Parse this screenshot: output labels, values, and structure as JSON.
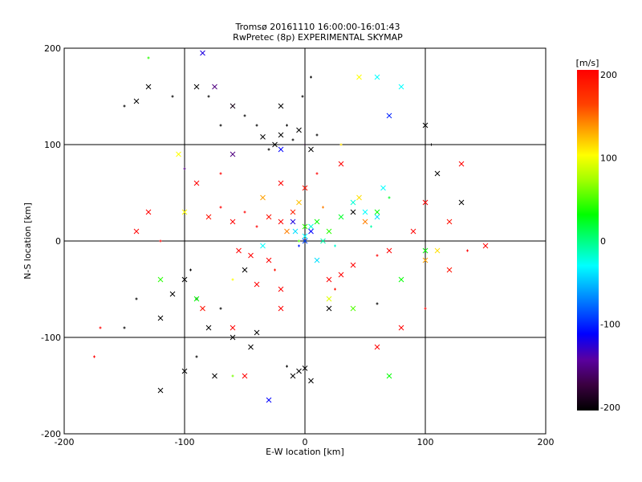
{
  "chart_data": {
    "type": "scatter",
    "title": "Tromsø 20161110 16:00:00-16:01:43",
    "subtitle": "RwPretec (8p) EXPERIMENTAL SKYMAP",
    "xlabel": "E-W location [km]",
    "ylabel": "N-S location [km]",
    "xlim": [
      -200,
      200
    ],
    "ylim": [
      -200,
      200
    ],
    "xticks": [
      "-200",
      "-100",
      "0",
      "100",
      "200"
    ],
    "yticks": [
      "-200",
      "-100",
      "0",
      "100",
      "200"
    ],
    "grid": true,
    "colorbar": {
      "label": "[m/s]",
      "range": [
        -200,
        200
      ],
      "ticks": [
        "200",
        "100",
        "0",
        "-100",
        "-200"
      ],
      "stops": [
        [
          -200,
          "#000000"
        ],
        [
          -170,
          "#3a0040"
        ],
        [
          -140,
          "#5a00a0"
        ],
        [
          -110,
          "#0000ff"
        ],
        [
          -60,
          "#00a0ff"
        ],
        [
          -30,
          "#00ffff"
        ],
        [
          0,
          "#00ff80"
        ],
        [
          30,
          "#00ff00"
        ],
        [
          70,
          "#a0ff00"
        ],
        [
          100,
          "#ffff00"
        ],
        [
          130,
          "#ffa000"
        ],
        [
          160,
          "#ff4000"
        ],
        [
          200,
          "#ff0000"
        ]
      ]
    },
    "points": [
      [
        -20,
        110,
        -200,
        "x"
      ],
      [
        -25,
        100,
        -200,
        "x"
      ],
      [
        -10,
        105,
        -200,
        "+"
      ],
      [
        -30,
        95,
        -200,
        "+"
      ],
      [
        -5,
        115,
        -200,
        "x"
      ],
      [
        -15,
        120,
        -200,
        "+"
      ],
      [
        0,
        100,
        -190,
        "+"
      ],
      [
        -35,
        108,
        -200,
        "x"
      ],
      [
        -40,
        120,
        -200,
        "+"
      ],
      [
        10,
        110,
        -200,
        "+"
      ],
      [
        5,
        95,
        -200,
        "x"
      ],
      [
        -50,
        130,
        -200,
        "+"
      ],
      [
        -60,
        140,
        -190,
        "x"
      ],
      [
        -70,
        120,
        -200,
        "+"
      ],
      [
        -80,
        150,
        -200,
        "+"
      ],
      [
        -90,
        160,
        -200,
        "x"
      ],
      [
        -110,
        150,
        -200,
        "+"
      ],
      [
        -130,
        160,
        -200,
        "x"
      ],
      [
        -140,
        145,
        -200,
        "x"
      ],
      [
        -150,
        140,
        -200,
        "+"
      ],
      [
        -20,
        140,
        -200,
        "x"
      ],
      [
        -2,
        150,
        -200,
        "+"
      ],
      [
        5,
        170,
        -200,
        "+"
      ],
      [
        -5,
        -135,
        -200,
        "x"
      ],
      [
        -10,
        -140,
        -200,
        "x"
      ],
      [
        0,
        -132,
        -200,
        "x"
      ],
      [
        -15,
        -130,
        -200,
        "+"
      ],
      [
        5,
        -145,
        -200,
        "x"
      ],
      [
        -100,
        -40,
        -200,
        "x"
      ],
      [
        -95,
        -30,
        -200,
        "+"
      ],
      [
        -110,
        -55,
        -200,
        "x"
      ],
      [
        -90,
        -60,
        -200,
        "+"
      ],
      [
        -120,
        -80,
        -200,
        "x"
      ],
      [
        -80,
        -90,
        -200,
        "x"
      ],
      [
        -70,
        -70,
        -200,
        "+"
      ],
      [
        -60,
        -100,
        -200,
        "x"
      ],
      [
        -100,
        -135,
        -200,
        "x"
      ],
      [
        -90,
        -120,
        -200,
        "+"
      ],
      [
        -75,
        -140,
        -200,
        "x"
      ],
      [
        -45,
        -110,
        -200,
        "x"
      ],
      [
        -40,
        -95,
        -200,
        "x"
      ],
      [
        -120,
        -155,
        -200,
        "x"
      ],
      [
        -140,
        -60,
        -200,
        "+"
      ],
      [
        -150,
        -90,
        -200,
        "+"
      ],
      [
        20,
        -70,
        -200,
        "x"
      ],
      [
        60,
        -65,
        -200,
        "+"
      ],
      [
        100,
        120,
        -200,
        "x"
      ],
      [
        105,
        100,
        -200,
        "+"
      ],
      [
        110,
        70,
        -200,
        "x"
      ],
      [
        130,
        40,
        -200,
        "x"
      ],
      [
        40,
        30,
        -200,
        "x"
      ],
      [
        -50,
        -30,
        -200,
        "x"
      ],
      [
        -20,
        20,
        200,
        "x"
      ],
      [
        -30,
        25,
        190,
        "x"
      ],
      [
        -40,
        15,
        200,
        "+"
      ],
      [
        -10,
        30,
        180,
        "x"
      ],
      [
        -50,
        30,
        200,
        "+"
      ],
      [
        -60,
        20,
        200,
        "x"
      ],
      [
        -70,
        35,
        200,
        "+"
      ],
      [
        -80,
        25,
        190,
        "x"
      ],
      [
        -45,
        -15,
        200,
        "x"
      ],
      [
        -30,
        -20,
        200,
        "x"
      ],
      [
        -55,
        -10,
        200,
        "x"
      ],
      [
        -25,
        -30,
        190,
        "+"
      ],
      [
        -20,
        -50,
        200,
        "x"
      ],
      [
        -40,
        -45,
        200,
        "x"
      ],
      [
        20,
        -40,
        200,
        "x"
      ],
      [
        30,
        -35,
        200,
        "x"
      ],
      [
        25,
        -50,
        190,
        "+"
      ],
      [
        40,
        -25,
        200,
        "x"
      ],
      [
        60,
        -15,
        200,
        "+"
      ],
      [
        70,
        -10,
        200,
        "x"
      ],
      [
        90,
        10,
        200,
        "x"
      ],
      [
        100,
        40,
        200,
        "x"
      ],
      [
        120,
        20,
        190,
        "x"
      ],
      [
        135,
        -10,
        200,
        "+"
      ],
      [
        150,
        -5,
        200,
        "x"
      ],
      [
        -130,
        30,
        200,
        "x"
      ],
      [
        -120,
        0,
        200,
        "+"
      ],
      [
        -170,
        -90,
        200,
        "+"
      ],
      [
        -175,
        -120,
        200,
        "+"
      ],
      [
        -90,
        60,
        200,
        "x"
      ],
      [
        -70,
        70,
        200,
        "+"
      ],
      [
        -20,
        60,
        200,
        "x"
      ],
      [
        0,
        55,
        190,
        "x"
      ],
      [
        10,
        70,
        200,
        "+"
      ],
      [
        30,
        80,
        200,
        "x"
      ],
      [
        -20,
        -70,
        200,
        "x"
      ],
      [
        -60,
        -90,
        200,
        "x"
      ],
      [
        -85,
        -70,
        190,
        "x"
      ],
      [
        80,
        -90,
        200,
        "x"
      ],
      [
        100,
        -70,
        200,
        "+"
      ],
      [
        -50,
        -140,
        200,
        "x"
      ],
      [
        60,
        -110,
        200,
        "x"
      ],
      [
        130,
        80,
        200,
        "x"
      ],
      [
        120,
        -30,
        190,
        "x"
      ],
      [
        -140,
        10,
        200,
        "x"
      ],
      [
        -15,
        10,
        140,
        "x"
      ],
      [
        -5,
        40,
        120,
        "x"
      ],
      [
        15,
        35,
        140,
        "+"
      ],
      [
        -35,
        45,
        130,
        "x"
      ],
      [
        45,
        45,
        110,
        "x"
      ],
      [
        50,
        20,
        140,
        "x"
      ],
      [
        -100,
        30,
        100,
        "x"
      ],
      [
        -60,
        -40,
        100,
        "+"
      ],
      [
        20,
        -60,
        90,
        "x"
      ],
      [
        30,
        100,
        110,
        "+"
      ],
      [
        45,
        170,
        100,
        "x"
      ],
      [
        100,
        -20,
        130,
        "x"
      ],
      [
        110,
        -10,
        110,
        "x"
      ],
      [
        -105,
        90,
        100,
        "x"
      ],
      [
        0,
        15,
        40,
        "x"
      ],
      [
        10,
        20,
        30,
        "x"
      ],
      [
        -5,
        0,
        50,
        "+"
      ],
      [
        20,
        10,
        40,
        "x"
      ],
      [
        30,
        25,
        20,
        "x"
      ],
      [
        -90,
        -60,
        30,
        "x"
      ],
      [
        -120,
        -40,
        40,
        "x"
      ],
      [
        60,
        30,
        30,
        "x"
      ],
      [
        70,
        45,
        20,
        "+"
      ],
      [
        -130,
        190,
        40,
        "+"
      ],
      [
        80,
        -40,
        30,
        "x"
      ],
      [
        40,
        -70,
        50,
        "x"
      ],
      [
        100,
        -10,
        30,
        "x"
      ],
      [
        -60,
        -140,
        60,
        "+"
      ],
      [
        70,
        -140,
        30,
        "x"
      ],
      [
        0,
        5,
        -30,
        "x"
      ],
      [
        5,
        15,
        -20,
        "x"
      ],
      [
        -8,
        10,
        -40,
        "x"
      ],
      [
        15,
        0,
        -10,
        "x"
      ],
      [
        25,
        -5,
        -20,
        "+"
      ],
      [
        50,
        30,
        -30,
        "x"
      ],
      [
        60,
        25,
        -40,
        "x"
      ],
      [
        40,
        40,
        -20,
        "x"
      ],
      [
        55,
        15,
        -10,
        "+"
      ],
      [
        65,
        55,
        -30,
        "x"
      ],
      [
        80,
        160,
        -30,
        "x"
      ],
      [
        10,
        -20,
        -40,
        "x"
      ],
      [
        -35,
        -5,
        -30,
        "x"
      ],
      [
        0,
        0,
        -90,
        "x"
      ],
      [
        -5,
        -5,
        -100,
        "+"
      ],
      [
        5,
        10,
        -110,
        "x"
      ],
      [
        -10,
        20,
        -120,
        "x"
      ],
      [
        -20,
        95,
        -110,
        "x"
      ],
      [
        -30,
        -165,
        -110,
        "x"
      ],
      [
        70,
        130,
        -100,
        "x"
      ],
      [
        -85,
        195,
        -120,
        "x"
      ],
      [
        -75,
        160,
        -150,
        "x"
      ],
      [
        -100,
        75,
        -150,
        "+"
      ],
      [
        -60,
        90,
        -150,
        "x"
      ],
      [
        60,
        170,
        -30,
        "x"
      ]
    ]
  }
}
